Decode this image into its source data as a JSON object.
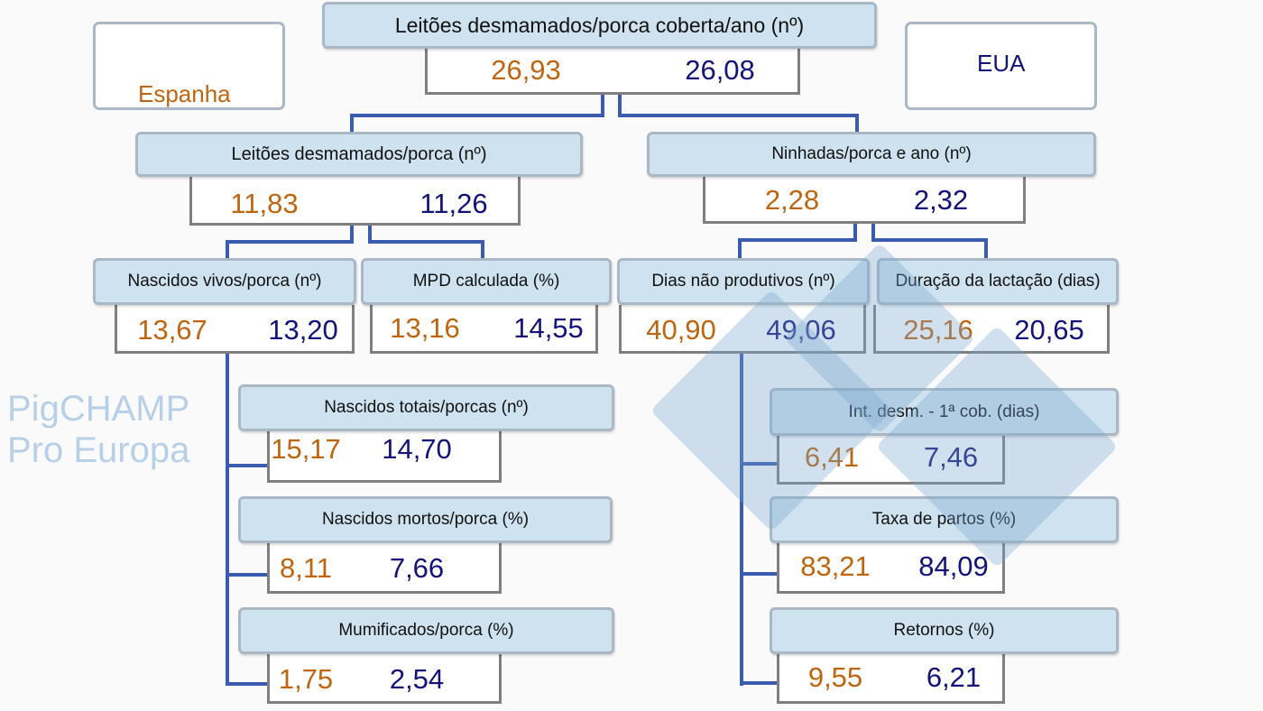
{
  "legend": {
    "spain": "Espanha",
    "usa": "EUA"
  },
  "watermark": "PigCHAMP Pro Europa",
  "colors": {
    "spain": "#c0650f",
    "usa": "#13137a",
    "header_fill": "#cfe2ef",
    "connector": "#3b5cae"
  },
  "nodes": [
    {
      "label": "Leitões desmamados/porca coberta/ano (nº)",
      "spain": "26,93",
      "usa": "26,08"
    },
    {
      "label": "Leitões desmamados/porca (nº)",
      "spain": "11,83",
      "usa": "11,26"
    },
    {
      "label": "Ninhadas/porca e ano (nº)",
      "spain": "2,28",
      "usa": "2,32"
    },
    {
      "label": "Nascidos vivos/porca (nº)",
      "spain": "13,67",
      "usa": "13,20"
    },
    {
      "label": "MPD calculada (%)",
      "spain": "13,16",
      "usa": "14,55"
    },
    {
      "label": "Dias não produtivos (nº)",
      "spain": "40,90",
      "usa": "49,06"
    },
    {
      "label": "Duração da lactação (dias)",
      "spain": "25,16",
      "usa": "20,65"
    },
    {
      "label": "Nascidos totais/porcas (nº)",
      "spain": "15,17",
      "usa": "14,70"
    },
    {
      "label": "Nascidos mortos/porca (%)",
      "spain": "8,11",
      "usa": "7,66"
    },
    {
      "label": "Mumificados/porca (%)",
      "spain": "1,75",
      "usa": "2,54"
    },
    {
      "label": "Int. desm. - 1ª cob. (dias)",
      "spain": "6,41",
      "usa": "7,46"
    },
    {
      "label": "Taxa de partos (%)",
      "spain": "83,21",
      "usa": "84,09"
    },
    {
      "label": "Retornos (%)",
      "spain": "9,55",
      "usa": "6,21"
    }
  ]
}
